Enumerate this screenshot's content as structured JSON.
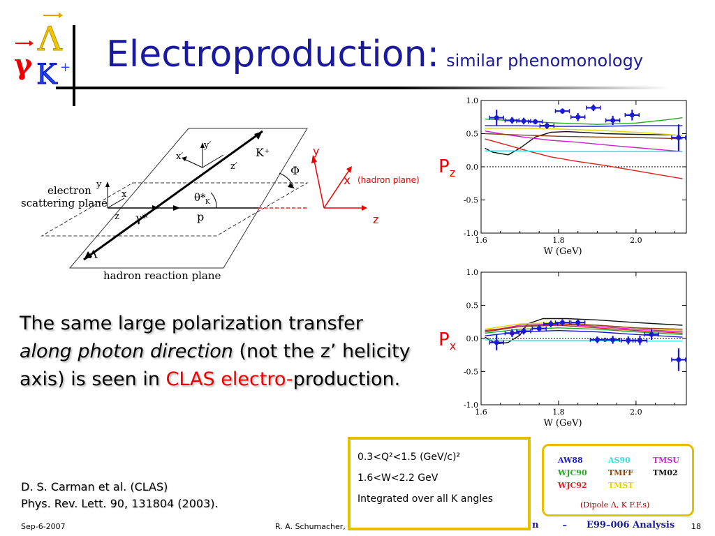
{
  "slide": {
    "title": "Electroproduction:",
    "subtitle": "similar phenomonology",
    "logo": {
      "gamma": "γ",
      "lambda": "Λ",
      "kaon": "K",
      "kaon_charge": "+"
    }
  },
  "statement": {
    "part1": "The same large polarization transfer ",
    "part2_italic": "along photon direction",
    "part3": " (not the z’ helicity axis) is seen in ",
    "part4_red": "CLAS electro-",
    "part5": "production."
  },
  "reference": {
    "line1": "D. S. Carman et al. (CLAS)",
    "line2": "Phys. Rev. Lett. 90, 131804 (2003)."
  },
  "footer": {
    "date": "Sep-6-2007",
    "author": "R. A. Schumacher,",
    "mid_n": "n",
    "mid_dash": "–",
    "analysis": "E99–006 Analysis",
    "page": "18"
  },
  "conditions": {
    "q2": "0.3<Q²<1.5 (GeV/c)²",
    "w": "1.6<W<2.2 GeV",
    "angles": "Integrated over all K angles"
  },
  "model_legend": [
    {
      "name": "AW88",
      "color": "#1a1ad0"
    },
    {
      "name": "AS90",
      "color": "#33dddd"
    },
    {
      "name": "TMSU",
      "color": "#d020d0"
    },
    {
      "name": "WJC90",
      "color": "#22aa22"
    },
    {
      "name": "TMFF",
      "color": "#884411"
    },
    {
      "name": "TM02",
      "color": "#111111"
    },
    {
      "name": "WJC92",
      "color": "#e02020"
    },
    {
      "name": "TMST",
      "color": "#e6d200"
    }
  ],
  "legend_note": "(Dipole Λ, K F.F.s)",
  "diagram": {
    "electron_plane": "electron",
    "electron_plane2": "scattering plane",
    "hadron_plane": "hadron reaction plane",
    "kplus": "K⁺",
    "lambda": "Λ",
    "gamma_star": "γ*",
    "p": "p",
    "phi": "Φ",
    "theta": "θ*",
    "theta_sub": "K",
    "xp": "x′",
    "yp": "y′",
    "zp": "z′",
    "x": "x",
    "y": "y",
    "z": "z",
    "frame_y": "y",
    "frame_x": "x",
    "frame_x_note": "(hadron plane)",
    "frame_z": "z"
  },
  "chart_data": [
    {
      "type": "scatter",
      "label": "Pz",
      "label_main": "P",
      "label_sub": "z",
      "xlabel": "W (GeV)",
      "xlim": [
        1.6,
        2.13
      ],
      "ylim": [
        -1.0,
        1.0
      ],
      "xticks": [
        "1.6",
        "1.8",
        "2.0"
      ],
      "yticks": [
        "1.0",
        "0.5",
        "0.0",
        "-0.5",
        "-1.0"
      ],
      "points": [
        {
          "x": 1.64,
          "y": 0.74,
          "err": 0.12
        },
        {
          "x": 1.68,
          "y": 0.7,
          "err": 0.05
        },
        {
          "x": 1.71,
          "y": 0.69,
          "err": 0.05
        },
        {
          "x": 1.74,
          "y": 0.68,
          "err": 0.04
        },
        {
          "x": 1.77,
          "y": 0.62,
          "err": 0.05
        },
        {
          "x": 1.81,
          "y": 0.84,
          "err": 0.04
        },
        {
          "x": 1.85,
          "y": 0.75,
          "err": 0.06
        },
        {
          "x": 1.89,
          "y": 0.89,
          "err": 0.05
        },
        {
          "x": 1.94,
          "y": 0.7,
          "err": 0.07
        },
        {
          "x": 1.99,
          "y": 0.78,
          "err": 0.08
        },
        {
          "x": 2.11,
          "y": 0.44,
          "err": 0.2
        }
      ],
      "curves": [
        {
          "model": "TM02",
          "color": "#111111",
          "x": [
            1.61,
            1.63,
            1.67,
            1.7,
            1.74,
            1.78,
            1.82,
            1.86,
            1.92,
            2.0,
            2.1
          ],
          "y": [
            0.28,
            0.22,
            0.18,
            0.28,
            0.45,
            0.52,
            0.53,
            0.52,
            0.5,
            0.49,
            0.48
          ]
        },
        {
          "model": "TMSU",
          "color": "#d020d0",
          "x": [
            1.61,
            1.66,
            1.72,
            1.78,
            1.85,
            1.92,
            2.0,
            2.08,
            2.12
          ],
          "y": [
            0.54,
            0.49,
            0.44,
            0.4,
            0.37,
            0.33,
            0.29,
            0.25,
            0.23
          ]
        },
        {
          "model": "WJC92",
          "color": "#e02020",
          "x": [
            1.61,
            1.66,
            1.72,
            1.78,
            1.85,
            1.92,
            2.0,
            2.08,
            2.12
          ],
          "y": [
            0.42,
            0.34,
            0.24,
            0.15,
            0.08,
            0.02,
            -0.06,
            -0.14,
            -0.18
          ]
        },
        {
          "model": "AS90",
          "color": "#33dddd",
          "x": [
            1.61,
            1.7,
            1.8,
            1.9,
            2.0,
            2.1,
            2.12
          ],
          "y": [
            0.24,
            0.24,
            0.23,
            0.23,
            0.23,
            0.23,
            0.23
          ]
        },
        {
          "model": "WJC90",
          "color": "#22aa22",
          "x": [
            1.61,
            1.7,
            1.8,
            1.9,
            2.0,
            2.08,
            2.12
          ],
          "y": [
            0.72,
            0.69,
            0.66,
            0.64,
            0.66,
            0.71,
            0.74
          ]
        },
        {
          "model": "AW88",
          "color": "#1a1ad0",
          "x": [
            1.61,
            1.7,
            1.8,
            1.9,
            2.0,
            2.08,
            2.12
          ],
          "y": [
            0.62,
            0.62,
            0.61,
            0.61,
            0.62,
            0.62,
            0.62
          ]
        },
        {
          "model": "TMST",
          "color": "#e6d200",
          "x": [
            1.61,
            1.7,
            1.8,
            1.9,
            2.0,
            2.08,
            2.12
          ],
          "y": [
            0.58,
            0.58,
            0.57,
            0.55,
            0.52,
            0.49,
            0.47
          ]
        },
        {
          "model": "TMFF",
          "color": "#884411",
          "x": [
            1.61,
            1.7,
            1.8,
            1.9,
            2.0,
            2.08,
            2.12
          ],
          "y": [
            0.5,
            0.48,
            0.46,
            0.45,
            0.44,
            0.43,
            0.42
          ]
        }
      ]
    },
    {
      "type": "scatter",
      "label": "Px",
      "label_main": "P",
      "label_sub": "x",
      "xlabel": "W (GeV)",
      "xlim": [
        1.6,
        2.13
      ],
      "ylim": [
        -1.0,
        1.0
      ],
      "xticks": [
        "1.6",
        "1.8",
        "2.0"
      ],
      "yticks": [
        "1.0",
        "0.5",
        "0.0",
        "-0.5",
        "-1.0"
      ],
      "points": [
        {
          "x": 1.64,
          "y": -0.06,
          "err": 0.12
        },
        {
          "x": 1.68,
          "y": 0.08,
          "err": 0.06
        },
        {
          "x": 1.71,
          "y": 0.11,
          "err": 0.05
        },
        {
          "x": 1.75,
          "y": 0.15,
          "err": 0.05
        },
        {
          "x": 1.78,
          "y": 0.22,
          "err": 0.05
        },
        {
          "x": 1.81,
          "y": 0.24,
          "err": 0.05
        },
        {
          "x": 1.85,
          "y": 0.24,
          "err": 0.05
        },
        {
          "x": 1.9,
          "y": -0.02,
          "err": 0.05
        },
        {
          "x": 1.94,
          "y": -0.02,
          "err": 0.06
        },
        {
          "x": 1.98,
          "y": -0.03,
          "err": 0.06
        },
        {
          "x": 2.01,
          "y": -0.03,
          "err": 0.07
        },
        {
          "x": 2.04,
          "y": 0.06,
          "err": 0.08
        },
        {
          "x": 2.11,
          "y": -0.32,
          "err": 0.17
        }
      ],
      "curves": [
        {
          "model": "TM02",
          "color": "#111111",
          "x": [
            1.61,
            1.64,
            1.67,
            1.7,
            1.72,
            1.76,
            1.82,
            1.9,
            2.0,
            2.12
          ],
          "y": [
            0.02,
            -0.08,
            -0.06,
            0.05,
            0.22,
            0.3,
            0.3,
            0.28,
            0.24,
            0.2
          ]
        },
        {
          "model": "TMSU",
          "color": "#d020d0",
          "x": [
            1.61,
            1.7,
            1.8,
            1.9,
            2.0,
            2.12
          ],
          "y": [
            0.1,
            0.2,
            0.22,
            0.18,
            0.14,
            0.1
          ]
        },
        {
          "model": "WJC92",
          "color": "#e02020",
          "x": [
            1.61,
            1.7,
            1.8,
            1.9,
            2.0,
            2.12
          ],
          "y": [
            0.12,
            0.18,
            0.2,
            0.16,
            0.12,
            0.08
          ]
        },
        {
          "model": "AS90",
          "color": "#33dddd",
          "x": [
            1.61,
            1.7,
            1.8,
            1.9,
            2.0,
            2.12
          ],
          "y": [
            -0.02,
            -0.03,
            -0.03,
            -0.03,
            -0.04,
            -0.04
          ]
        },
        {
          "model": "WJC90",
          "color": "#22aa22",
          "x": [
            1.61,
            1.7,
            1.8,
            1.9,
            2.0,
            2.12
          ],
          "y": [
            0.08,
            0.14,
            0.16,
            0.14,
            0.1,
            0.06
          ]
        },
        {
          "model": "AW88",
          "color": "#1a1ad0",
          "x": [
            1.61,
            1.7,
            1.8,
            1.9,
            2.0,
            2.12
          ],
          "y": [
            0.04,
            0.1,
            0.12,
            0.1,
            0.06,
            0.02
          ]
        },
        {
          "model": "TMST",
          "color": "#e6d200",
          "x": [
            1.61,
            1.7,
            1.8,
            1.9,
            2.0,
            2.12
          ],
          "y": [
            0.14,
            0.22,
            0.24,
            0.2,
            0.16,
            0.12
          ]
        },
        {
          "model": "TMFF",
          "color": "#884411",
          "x": [
            1.61,
            1.7,
            1.8,
            1.9,
            2.0,
            2.12
          ],
          "y": [
            0.1,
            0.18,
            0.22,
            0.2,
            0.16,
            0.14
          ]
        }
      ]
    }
  ]
}
